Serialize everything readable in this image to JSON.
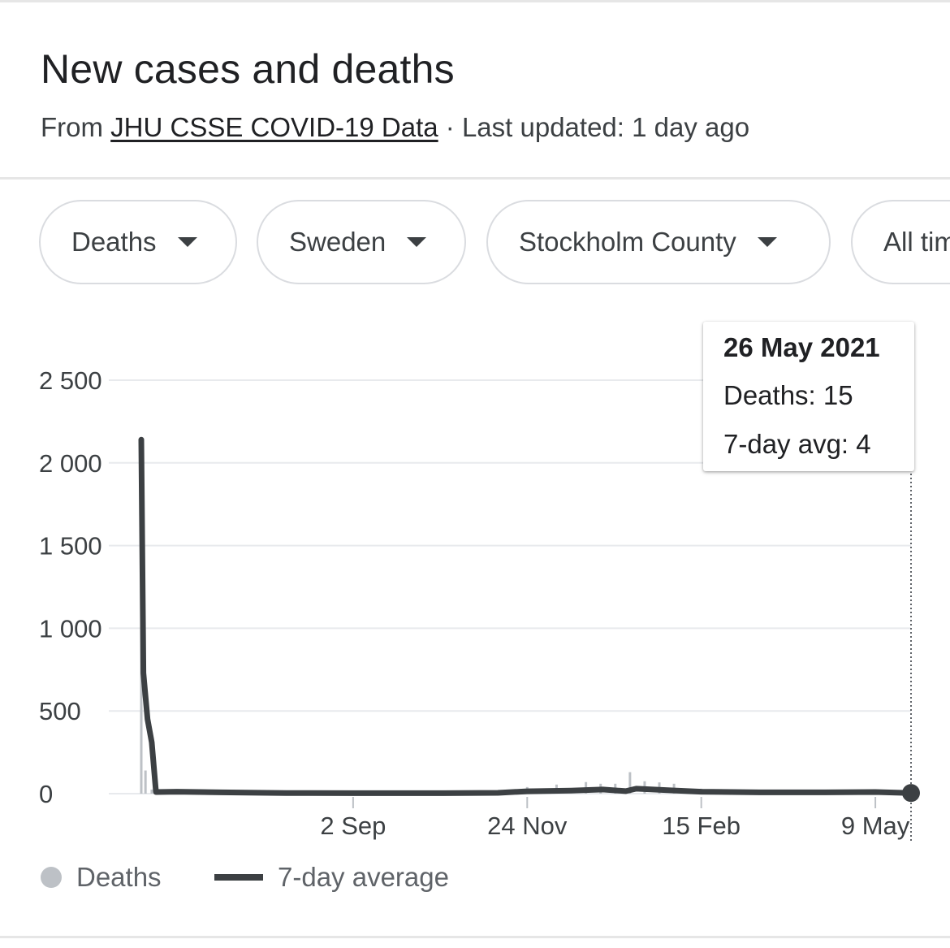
{
  "header": {
    "title": "New cases and deaths",
    "subtitle_prefix": "From",
    "source_link": "JHU CSSE COVID-19 Data",
    "updated": "· Last updated: 1 day ago"
  },
  "filters": [
    {
      "label": "Deaths"
    },
    {
      "label": "Sweden"
    },
    {
      "label": "Stockholm County"
    },
    {
      "label": "All time"
    }
  ],
  "tooltip": {
    "date": "26 May 2021",
    "deaths": "Deaths: 15",
    "avg": "7-day avg: 4"
  },
  "legend": {
    "deaths": "Deaths",
    "avg": "7-day average"
  },
  "colors": {
    "avg_line": "#3c4043",
    "deaths_bars": "#bdc1c6",
    "grid": "#e8eaed"
  },
  "chart_data": {
    "type": "line",
    "title": "",
    "xlabel": "",
    "ylabel": "",
    "ylim": [
      0,
      2500
    ],
    "y_ticks": [
      0,
      500,
      1000,
      1500,
      2000,
      2500
    ],
    "y_tick_labels": [
      "0",
      "500",
      "1 000",
      "1 500",
      "2 000",
      "2 500"
    ],
    "x_ticks": [
      "2020-09-02",
      "2020-11-24",
      "2021-02-15",
      "2021-05-09"
    ],
    "x_tick_labels": [
      "2 Sep",
      "24 Nov",
      "15 Feb",
      "9 May"
    ],
    "x_range": [
      "2020-05-24",
      "2021-05-26"
    ],
    "grid": true,
    "legend_position": "bottom-left",
    "series": [
      {
        "name": "Deaths",
        "style": "bars",
        "points": [
          [
            "2020-05-24",
            2140
          ],
          [
            "2020-05-26",
            140
          ],
          [
            "2020-05-29",
            25
          ],
          [
            "2020-06-04",
            12
          ],
          [
            "2020-11-24",
            40
          ],
          [
            "2020-12-08",
            55
          ],
          [
            "2020-12-22",
            70
          ],
          [
            "2020-12-29",
            60
          ],
          [
            "2021-01-05",
            60
          ],
          [
            "2021-01-12",
            130
          ],
          [
            "2021-01-19",
            75
          ],
          [
            "2021-01-26",
            68
          ],
          [
            "2021-02-02",
            60
          ],
          [
            "2021-02-15",
            30
          ],
          [
            "2021-05-26",
            15
          ]
        ]
      },
      {
        "name": "7-day average",
        "style": "line",
        "points": [
          [
            "2020-05-24",
            2140
          ],
          [
            "2020-05-25",
            730
          ],
          [
            "2020-05-27",
            450
          ],
          [
            "2020-05-29",
            310
          ],
          [
            "2020-05-31",
            10
          ],
          [
            "2020-06-10",
            12
          ],
          [
            "2020-07-01",
            8
          ],
          [
            "2020-08-01",
            4
          ],
          [
            "2020-09-02",
            3
          ],
          [
            "2020-10-15",
            3
          ],
          [
            "2020-11-10",
            5
          ],
          [
            "2020-11-24",
            14
          ],
          [
            "2020-12-15",
            18
          ],
          [
            "2020-12-30",
            25
          ],
          [
            "2021-01-10",
            15
          ],
          [
            "2021-01-15",
            30
          ],
          [
            "2021-01-31",
            20
          ],
          [
            "2021-02-15",
            12
          ],
          [
            "2021-03-15",
            8
          ],
          [
            "2021-04-15",
            8
          ],
          [
            "2021-05-09",
            10
          ],
          [
            "2021-05-26",
            4
          ]
        ]
      }
    ],
    "highlight": {
      "date": "2021-05-26",
      "value": 4
    }
  }
}
